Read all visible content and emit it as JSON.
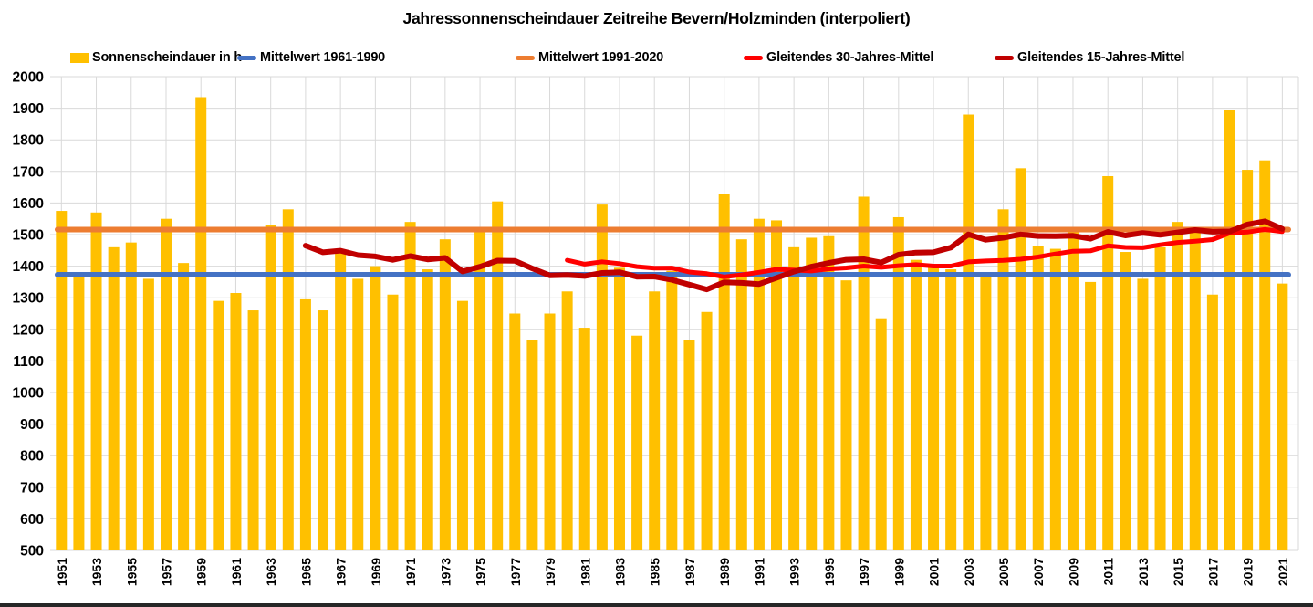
{
  "title": "Jahressonnenscheindauer Zeitreihe Bevern/Holzminden (interpoliert)",
  "legend": [
    {
      "label": "Sonnenscheindauer in h",
      "swatch": "bar",
      "color": "#FFC000"
    },
    {
      "label": "Mittelwert 1961-1990",
      "swatch": "line",
      "color": "#4472C4"
    },
    {
      "label": "Mittelwert 1991-2020",
      "swatch": "line",
      "color": "#ED7D31"
    },
    {
      "label": "Gleitendes 30-Jahres-Mittel",
      "swatch": "line",
      "color": "#FF0000"
    },
    {
      "label": "Gleitendes 15-Jahres-Mittel",
      "swatch": "line",
      "color": "#C00000"
    }
  ],
  "chart_data": {
    "type": "bar",
    "title": "Jahressonnenscheindauer Zeitreihe Bevern/Holzminden (interpoliert)",
    "xlabel": "",
    "ylabel": "",
    "unit": "h",
    "categories": [
      1951,
      1952,
      1953,
      1954,
      1955,
      1956,
      1957,
      1958,
      1959,
      1960,
      1961,
      1962,
      1963,
      1964,
      1965,
      1966,
      1967,
      1968,
      1969,
      1970,
      1971,
      1972,
      1973,
      1974,
      1975,
      1976,
      1977,
      1978,
      1979,
      1980,
      1981,
      1982,
      1983,
      1984,
      1985,
      1986,
      1987,
      1988,
      1989,
      1990,
      1991,
      1992,
      1993,
      1994,
      1995,
      1996,
      1997,
      1998,
      1999,
      2000,
      2001,
      2002,
      2003,
      2004,
      2005,
      2006,
      2007,
      2008,
      2009,
      2010,
      2011,
      2012,
      2013,
      2014,
      2015,
      2016,
      2017,
      2018,
      2019,
      2020,
      2021
    ],
    "series": [
      {
        "name": "Sonnenscheindauer in h",
        "type": "bar",
        "color": "#FFC000",
        "values": [
          1575,
          1370,
          1570,
          1460,
          1475,
          1360,
          1550,
          1410,
          1935,
          1290,
          1315,
          1260,
          1530,
          1580,
          1295,
          1260,
          1445,
          1360,
          1400,
          1310,
          1540,
          1390,
          1485,
          1290,
          1515,
          1605,
          1250,
          1165,
          1250,
          1320,
          1205,
          1595,
          1395,
          1180,
          1320,
          1385,
          1165,
          1255,
          1630,
          1485,
          1550,
          1545,
          1460,
          1490,
          1495,
          1355,
          1620,
          1235,
          1555,
          1420,
          1400,
          1390,
          1880,
          1375,
          1580,
          1710,
          1465,
          1455,
          1510,
          1350,
          1685,
          1445,
          1360,
          1460,
          1540,
          1510,
          1310,
          1895,
          1705,
          1735,
          1345
        ]
      },
      {
        "name": "Mittelwert 1961-1990",
        "type": "hline",
        "color": "#4472C4",
        "value": 1373
      },
      {
        "name": "Mittelwert 1991-2020",
        "type": "hline",
        "color": "#ED7D31",
        "value": 1516
      },
      {
        "name": "Gleitendes 30-Jahres-Mittel",
        "type": "moving_average",
        "color": "#FF0000",
        "window": 30,
        "start_year": 1980,
        "end_year": 2021
      },
      {
        "name": "Gleitendes 15-Jahres-Mittel",
        "type": "moving_average",
        "color": "#C00000",
        "window": 15,
        "start_year": 1965,
        "end_year": 2021
      }
    ],
    "ylim": [
      500,
      2000
    ],
    "ytick_step": 100,
    "ytick_labels": [
      "500",
      "600",
      "700",
      "800",
      "900",
      "1000",
      "1100",
      "1200",
      "1300",
      "1400",
      "1500",
      "1600",
      "1700",
      "1800",
      "1900",
      "2000"
    ],
    "xtick_labels": [
      "1951",
      "1953",
      "1955",
      "1957",
      "1959",
      "1961",
      "1963",
      "1965",
      "1967",
      "1969",
      "1971",
      "1973",
      "1975",
      "1977",
      "1979",
      "1981",
      "1983",
      "1985",
      "1987",
      "1989",
      "1991",
      "1993",
      "1995",
      "1997",
      "1999",
      "2001",
      "2003",
      "2005",
      "2007",
      "2009",
      "2011",
      "2013",
      "2015",
      "2017",
      "2019",
      "2021"
    ],
    "grid": true,
    "grid_color": "#D9D9D9",
    "legend_position": "top"
  }
}
